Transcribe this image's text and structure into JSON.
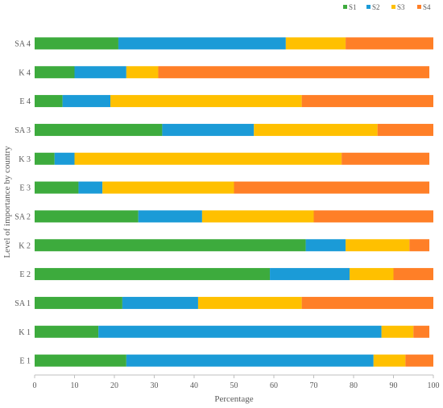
{
  "chart_data": {
    "type": "bar",
    "orientation": "horizontal",
    "stacked": true,
    "categories": [
      "SA 4",
      "K 4",
      "E 4",
      "SA 3",
      "K 3",
      "E 3",
      "SA 2",
      "K 2",
      "E 2",
      "SA 1",
      "K 1",
      "E 1"
    ],
    "series": [
      {
        "name": "S1",
        "color": "#3DAB3D",
        "values": [
          21,
          10,
          7,
          32,
          5,
          11,
          26,
          68,
          59,
          22,
          16,
          23
        ]
      },
      {
        "name": "S2",
        "color": "#1B9BD7",
        "values": [
          42,
          13,
          12,
          23,
          5,
          6,
          16,
          10,
          20,
          19,
          71,
          62
        ]
      },
      {
        "name": "S3",
        "color": "#FFC000",
        "values": [
          15,
          8,
          48,
          31,
          67,
          33,
          28,
          16,
          11,
          26,
          8,
          8
        ]
      },
      {
        "name": "S4",
        "color": "#FF7F27",
        "values": [
          22,
          68,
          33,
          14,
          22,
          49,
          30,
          5,
          10,
          33,
          4,
          7
        ]
      }
    ],
    "xlabel": "Percentage",
    "ylabel": "Level of importance by country",
    "xlim": [
      0,
      100
    ],
    "xticks": [
      0,
      10,
      20,
      30,
      40,
      50,
      60,
      70,
      80,
      90,
      100
    ],
    "grid": false,
    "legend_position": "top-right"
  }
}
